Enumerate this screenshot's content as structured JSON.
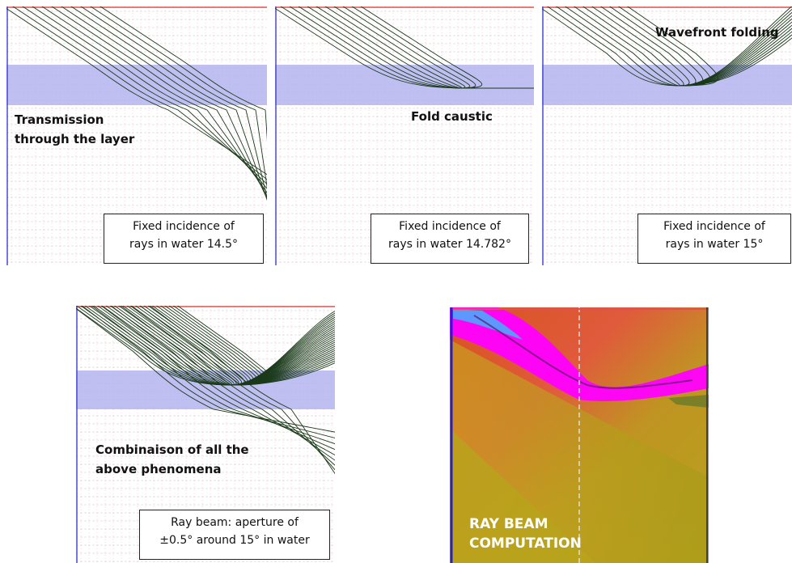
{
  "panels": [
    {
      "caption_lines": [
        "Transmission",
        "through the layer"
      ],
      "box_lines": [
        "Fixed incidence of",
        "rays in water 14.5°"
      ]
    },
    {
      "caption_lines": [
        "Fold caustic"
      ],
      "box_lines": [
        "Fixed incidence of",
        "rays in water 14.782°"
      ]
    },
    {
      "caption_lines": [
        "Wavefront folding"
      ],
      "box_lines": [
        "Fixed incidence of",
        "rays in water 15°"
      ]
    },
    {
      "caption_lines": [
        "Combinaison of all the",
        "above phenomena"
      ],
      "box_lines": [
        "Ray beam: aperture of",
        "±0.5° around 15° in water"
      ]
    }
  ],
  "ray_beam": {
    "label_lines": [
      "RAY BEAM",
      "COMPUTATION"
    ]
  },
  "colors": {
    "layer": "#b4b4f0",
    "grid": "#c8c8c8",
    "grid_dot": "#e8b0b0",
    "ray": "#1a3a1a",
    "top_edge": "#e05050",
    "left_edge": "#4a4ad8",
    "heatmap_high": "#ff00ff",
    "heatmap_mid": "#e05a3c",
    "heatmap_low": "#b4a41e"
  }
}
